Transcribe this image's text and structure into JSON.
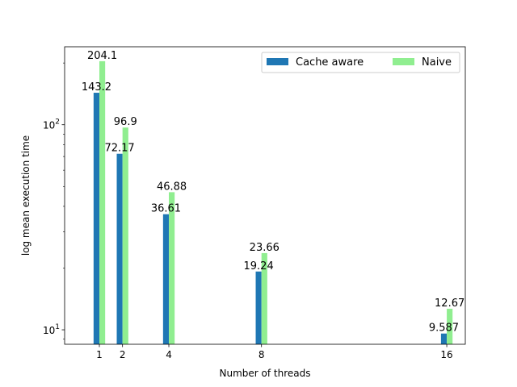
{
  "chart_data": {
    "type": "bar",
    "xlabel": "Number of threads",
    "ylabel": "log mean execution time",
    "yscale": "log",
    "ylim": [
      8.5,
      240
    ],
    "xlim": [
      -0.5,
      16.8
    ],
    "x": [
      1,
      2,
      4,
      8,
      16
    ],
    "x_tick_labels": [
      "1",
      "2",
      "4",
      "8",
      "16"
    ],
    "y_ticks": [
      {
        "value": 10,
        "base": "10",
        "exp": "1"
      },
      {
        "value": 100,
        "base": "10",
        "exp": "2"
      }
    ],
    "grid": false,
    "legend_placement": "top-right",
    "series": [
      {
        "name": "Cache aware",
        "color": "#1f77b4",
        "values": [
          143.2,
          72.17,
          36.61,
          19.24,
          9.587
        ],
        "labels": [
          "143.2",
          "72.17",
          "36.61",
          "19.24",
          "9.587"
        ]
      },
      {
        "name": "Naive",
        "color": "#90ee90",
        "values": [
          204.1,
          96.9,
          46.88,
          23.66,
          12.67
        ],
        "labels": [
          "204.1",
          "96.9",
          "46.88",
          "23.66",
          "12.67"
        ]
      }
    ]
  }
}
